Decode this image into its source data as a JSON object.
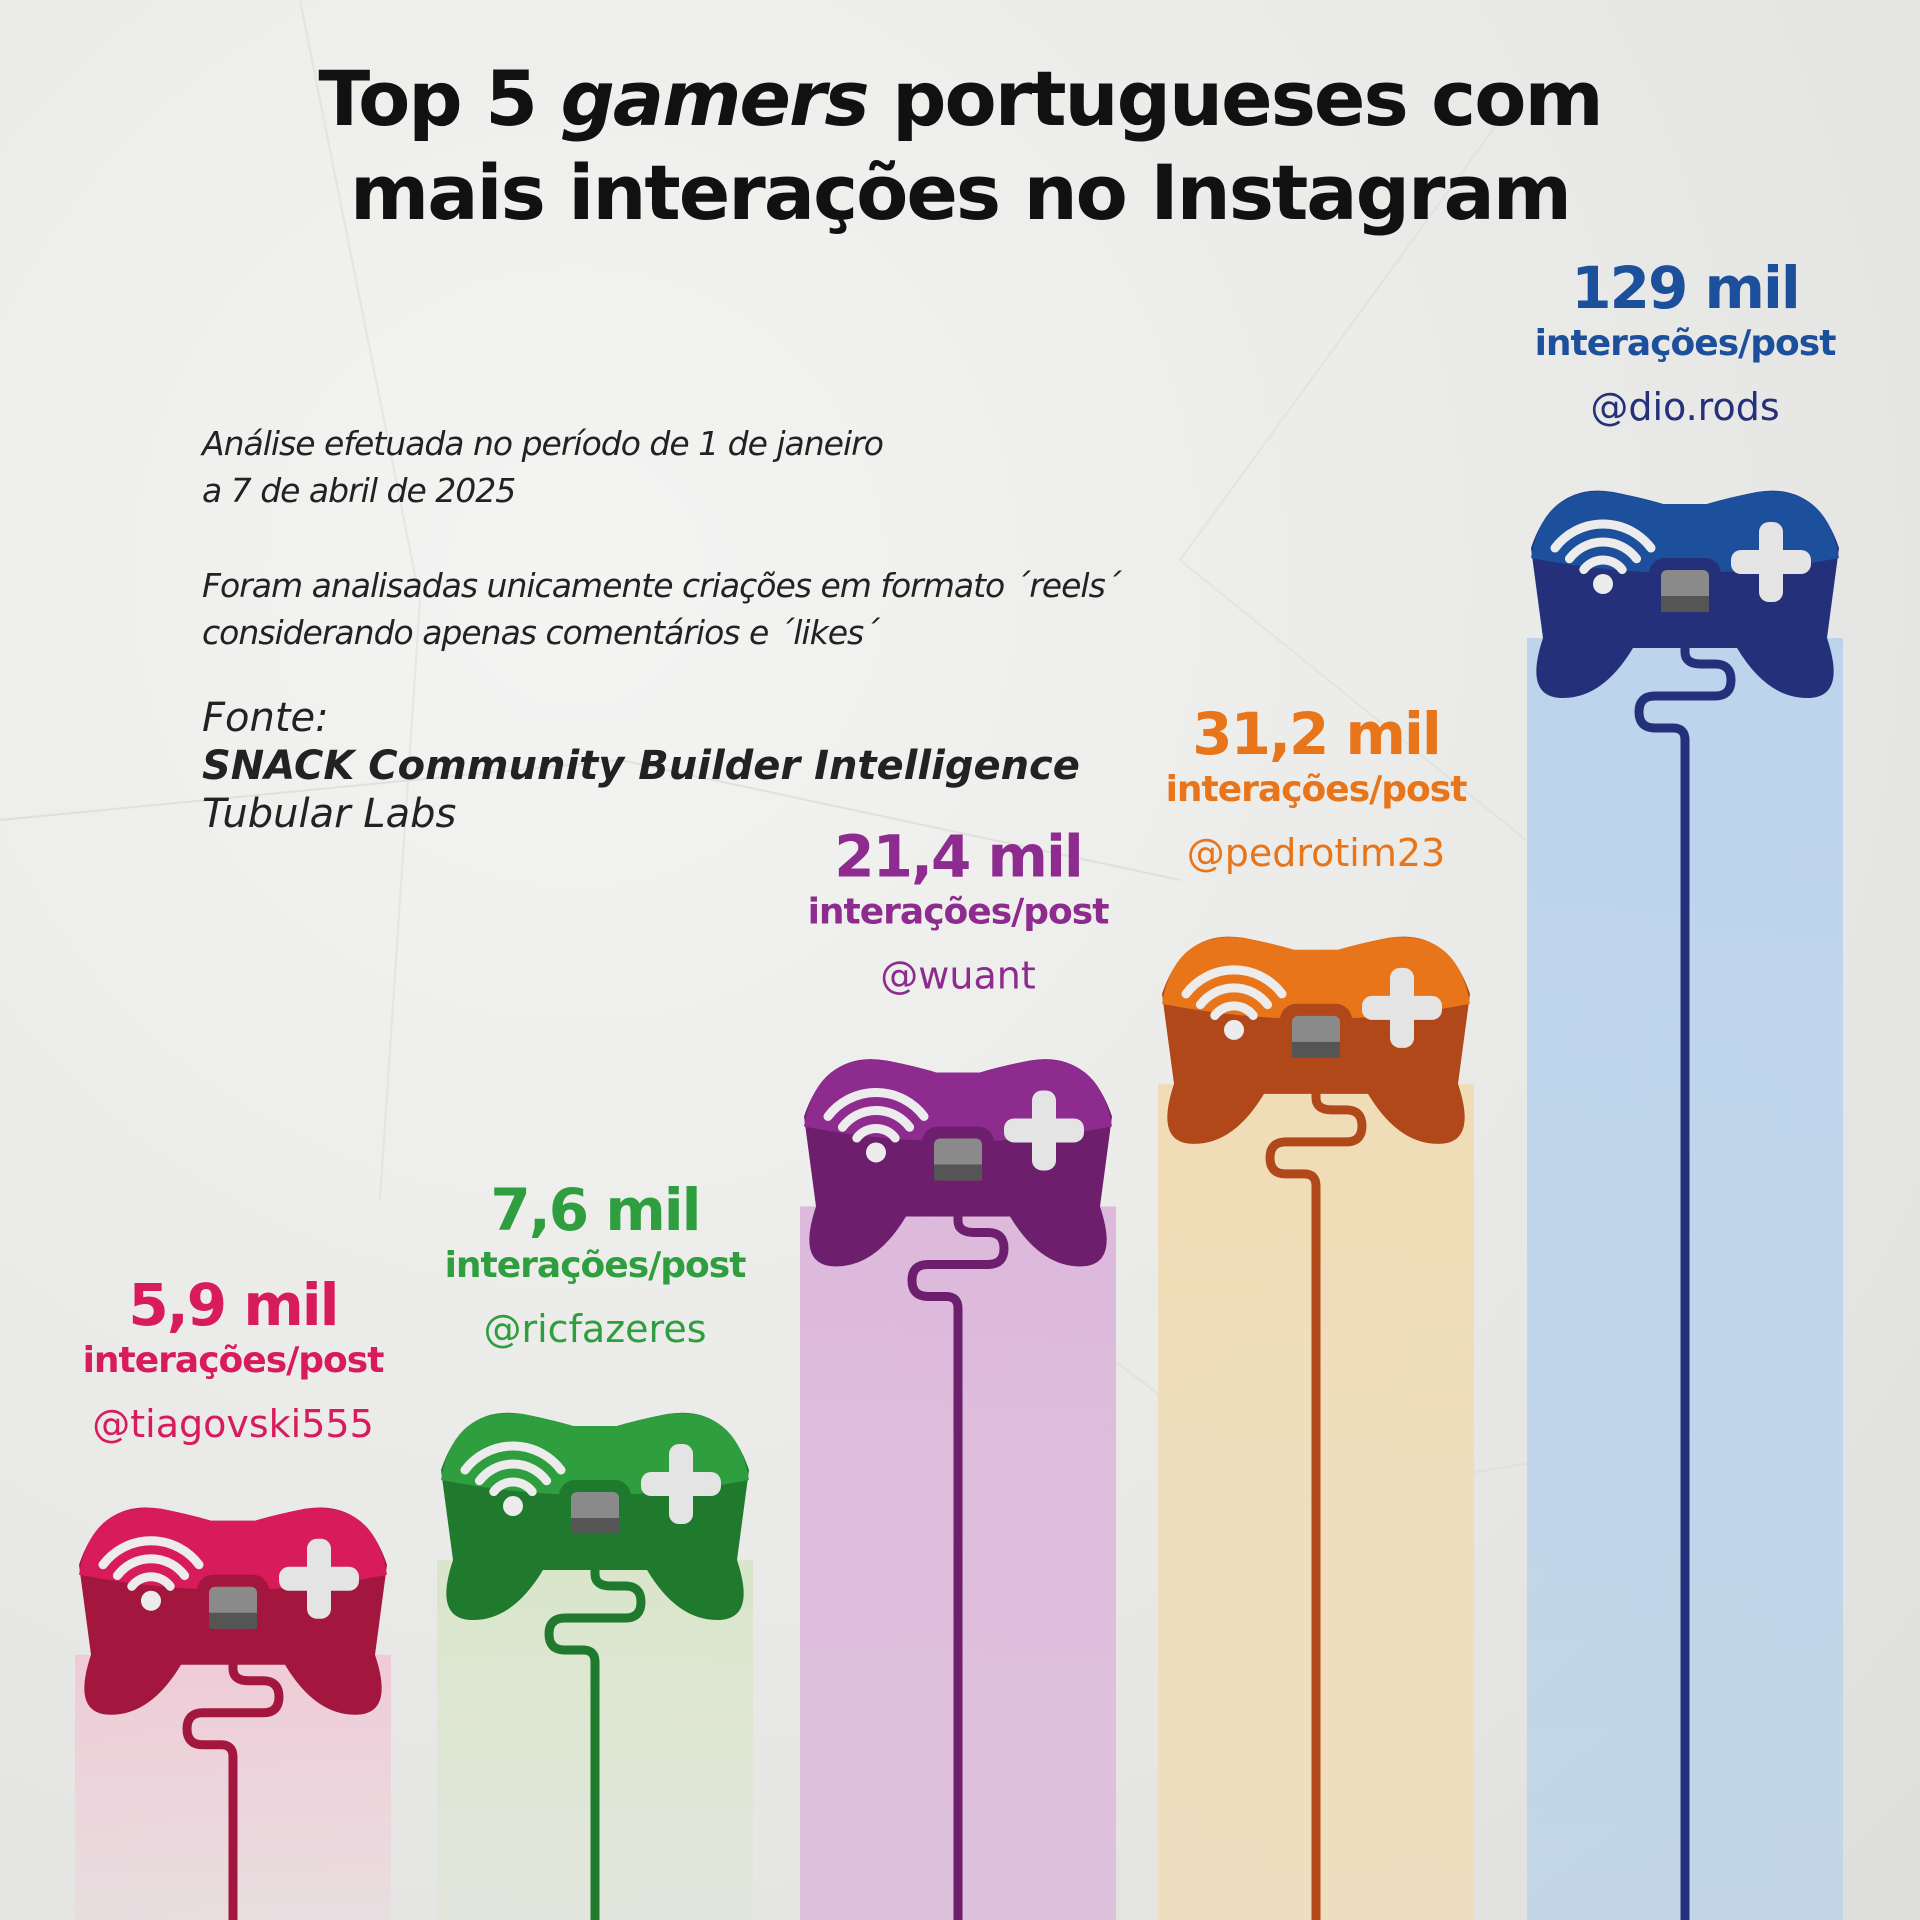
{
  "title": {
    "prefix": "Top 5 ",
    "italic": "gamers",
    "line1_suffix": " portugueses com",
    "line2": "mais interações no Instagram"
  },
  "notes": {
    "period_line1": "Análise efetuada no período de 1 de janeiro",
    "period_line2": "a 7 de abril de 2025",
    "format_line1": "Foram analisadas unicamente criações em formato ´reels´",
    "format_line2": "considerando apenas comentários e ´likes´",
    "source_label": "Fonte:",
    "source_1": "SNACK Community Builder Intelligence",
    "source_2": "Tubular Labs"
  },
  "chart_data": {
    "type": "bar",
    "categories": [
      "@tiagovski555",
      "@ricfazeres",
      "@wuant",
      "@pedrotim23",
      "@dio.rods"
    ],
    "values": [
      5.9,
      7.6,
      21.4,
      31.2,
      129
    ],
    "value_labels": [
      "5,9 mil",
      "7,6 mil",
      "21,4 mil",
      "31,2 mil",
      "129 mil"
    ],
    "unit_label": "interações/post",
    "colors": [
      "#d81b5a",
      "#2e9e3e",
      "#8e2b8f",
      "#e8751a",
      "#1c4f9c"
    ],
    "dark_colors": [
      "#a3173f",
      "#1f7a2e",
      "#6d1f6e",
      "#b0481a",
      "#24307a"
    ],
    "glow_colors": [
      "#f0c9d6",
      "#d8e6c8",
      "#dcb6da",
      "#f0dcb4",
      "#b9d3ec"
    ]
  }
}
